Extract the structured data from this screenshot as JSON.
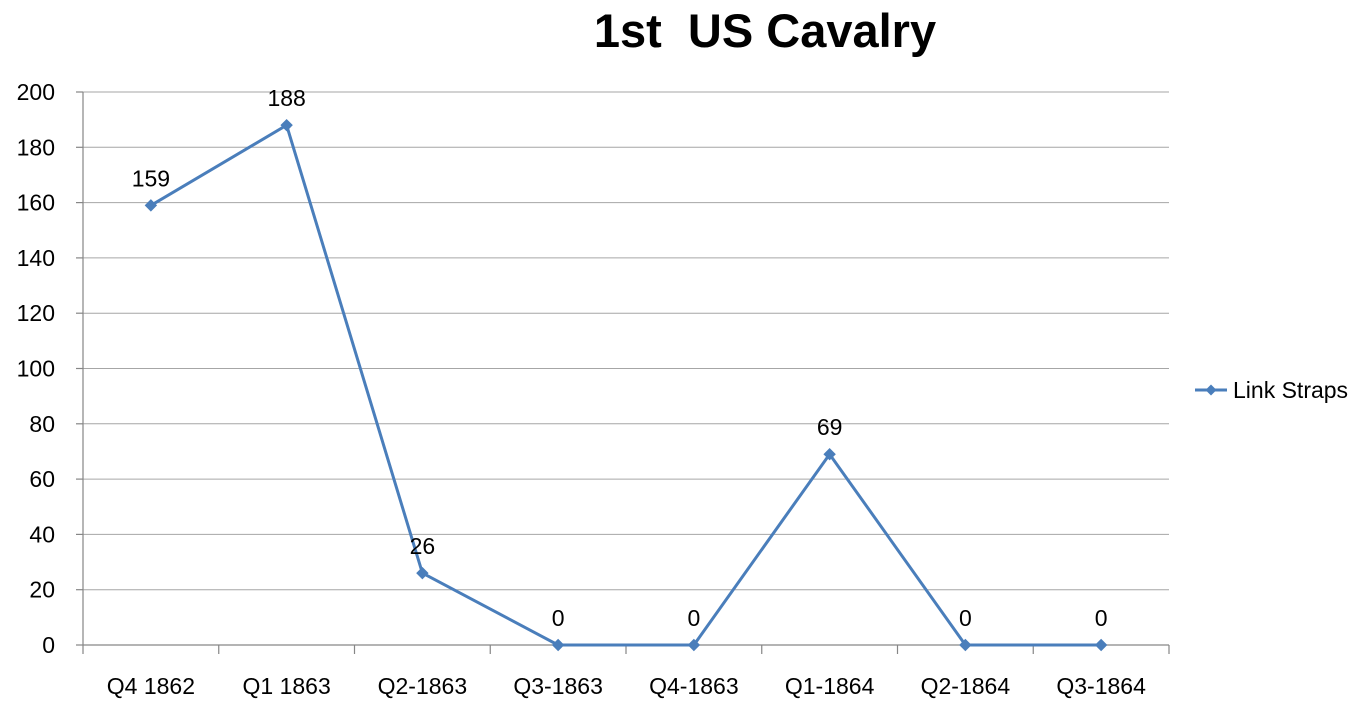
{
  "chart_data": {
    "type": "line",
    "title": "1st  US Cavalry",
    "xlabel": "",
    "ylabel": "",
    "categories": [
      "Q4 1862",
      "Q1 1863",
      "Q2-1863",
      "Q3-1863",
      "Q4-1863",
      "Q1-1864",
      "Q2-1864",
      "Q3-1864"
    ],
    "series": [
      {
        "name": "Link Straps",
        "values": [
          159,
          188,
          26,
          0,
          0,
          69,
          0,
          0
        ],
        "color": "#4a7ebb",
        "marker": "diamond"
      }
    ],
    "ylim": [
      0,
      200
    ],
    "yticks": [
      0,
      20,
      40,
      60,
      80,
      100,
      120,
      140,
      160,
      180,
      200
    ],
    "data_labels": true,
    "grid": true,
    "legend_position": "right"
  }
}
